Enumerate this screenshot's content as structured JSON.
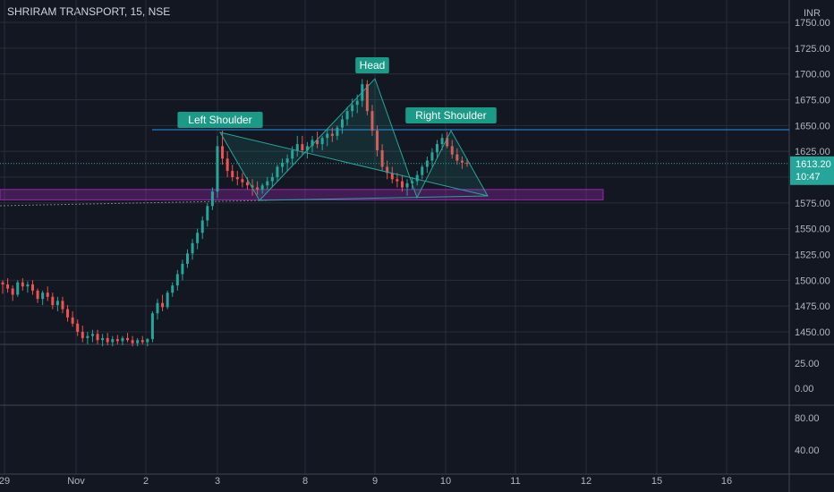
{
  "header": {
    "title": "SHRIRAM TRANSPORT, 15, NSE"
  },
  "chart_data": {
    "type": "candlestick",
    "currency": "INR",
    "price_axis": {
      "ylim": [
        1425,
        1765
      ],
      "ticks": [
        "1750.00",
        "1725.00",
        "1700.00",
        "1675.00",
        "1650.00",
        "1625.00",
        "1600.00",
        "1575.00",
        "1550.00",
        "1525.00",
        "1500.00",
        "1475.00",
        "1450.00"
      ]
    },
    "last_price": {
      "value": "1613.20",
      "countdown": "10:47"
    },
    "x_labels": [
      "29",
      "Nov",
      "2",
      "3",
      "8",
      "9",
      "10",
      "11",
      "12",
      "15",
      "16"
    ],
    "annotations": {
      "left_shoulder": "Left Shoulder",
      "head": "Head",
      "right_shoulder": "Right Shoulder"
    },
    "resistance_level": 1646,
    "support_zone": [
      1580,
      1586
    ],
    "pattern_points": [
      {
        "label": "start",
        "day": "3",
        "price": 1645
      },
      {
        "label": "trough1",
        "day": "3",
        "price": 1580
      },
      {
        "label": "head",
        "day": "9",
        "price": 1695
      },
      {
        "label": "trough2",
        "day": "9",
        "price": 1582
      },
      {
        "label": "right",
        "day": "10",
        "price": 1645
      },
      {
        "label": "end",
        "day": "10",
        "price": 1583
      }
    ],
    "indicator1": {
      "ticks": [
        "25.00",
        "0.00"
      ]
    },
    "indicator2": {
      "ticks": [
        "80.00",
        "40.00"
      ]
    },
    "candles": [
      [
        1498,
        1500,
        1487,
        1496
      ],
      [
        1496,
        1502,
        1488,
        1492
      ],
      [
        1492,
        1495,
        1480,
        1486
      ],
      [
        1486,
        1500,
        1484,
        1498
      ],
      [
        1498,
        1502,
        1490,
        1494
      ],
      [
        1494,
        1499,
        1488,
        1496
      ],
      [
        1496,
        1500,
        1486,
        1490
      ],
      [
        1490,
        1492,
        1478,
        1482
      ],
      [
        1482,
        1490,
        1476,
        1488
      ],
      [
        1488,
        1494,
        1480,
        1484
      ],
      [
        1484,
        1488,
        1472,
        1476
      ],
      [
        1476,
        1484,
        1470,
        1480
      ],
      [
        1480,
        1484,
        1468,
        1472
      ],
      [
        1472,
        1476,
        1460,
        1464
      ],
      [
        1464,
        1470,
        1455,
        1458
      ],
      [
        1458,
        1462,
        1446,
        1450
      ],
      [
        1450,
        1456,
        1440,
        1444
      ],
      [
        1444,
        1450,
        1438,
        1446
      ],
      [
        1446,
        1452,
        1440,
        1448
      ],
      [
        1448,
        1452,
        1438,
        1442
      ],
      [
        1442,
        1448,
        1436,
        1444
      ],
      [
        1444,
        1449,
        1437,
        1440
      ],
      [
        1440,
        1446,
        1436,
        1443
      ],
      [
        1443,
        1447,
        1438,
        1441
      ],
      [
        1441,
        1446,
        1437,
        1444
      ],
      [
        1444,
        1449,
        1440,
        1442
      ],
      [
        1442,
        1446,
        1436,
        1439
      ],
      [
        1439,
        1444,
        1436,
        1442
      ],
      [
        1442,
        1446,
        1438,
        1440
      ],
      [
        1440,
        1444,
        1436,
        1443
      ],
      [
        1443,
        1470,
        1440,
        1468
      ],
      [
        1468,
        1482,
        1462,
        1478
      ],
      [
        1478,
        1486,
        1470,
        1474
      ],
      [
        1474,
        1490,
        1472,
        1488
      ],
      [
        1488,
        1498,
        1484,
        1495
      ],
      [
        1495,
        1510,
        1490,
        1506
      ],
      [
        1506,
        1520,
        1500,
        1516
      ],
      [
        1516,
        1530,
        1512,
        1526
      ],
      [
        1526,
        1540,
        1520,
        1536
      ],
      [
        1536,
        1550,
        1530,
        1546
      ],
      [
        1546,
        1562,
        1540,
        1558
      ],
      [
        1558,
        1575,
        1552,
        1572
      ],
      [
        1572,
        1590,
        1568,
        1586
      ],
      [
        1586,
        1640,
        1580,
        1630
      ],
      [
        1630,
        1645,
        1612,
        1618
      ],
      [
        1618,
        1625,
        1600,
        1606
      ],
      [
        1606,
        1612,
        1596,
        1600
      ],
      [
        1600,
        1606,
        1592,
        1598
      ],
      [
        1598,
        1604,
        1590,
        1595
      ],
      [
        1595,
        1600,
        1588,
        1592
      ],
      [
        1592,
        1598,
        1582,
        1590
      ],
      [
        1590,
        1596,
        1583,
        1588
      ],
      [
        1588,
        1594,
        1584,
        1592
      ],
      [
        1592,
        1600,
        1588,
        1596
      ],
      [
        1596,
        1604,
        1590,
        1600
      ],
      [
        1600,
        1612,
        1596,
        1610
      ],
      [
        1610,
        1618,
        1604,
        1614
      ],
      [
        1614,
        1622,
        1606,
        1618
      ],
      [
        1618,
        1630,
        1612,
        1626
      ],
      [
        1626,
        1640,
        1620,
        1632
      ],
      [
        1632,
        1640,
        1622,
        1626
      ],
      [
        1626,
        1634,
        1618,
        1630
      ],
      [
        1630,
        1640,
        1624,
        1636
      ],
      [
        1636,
        1644,
        1628,
        1632
      ],
      [
        1632,
        1640,
        1626,
        1638
      ],
      [
        1638,
        1646,
        1630,
        1642
      ],
      [
        1642,
        1648,
        1634,
        1640
      ],
      [
        1640,
        1650,
        1636,
        1648
      ],
      [
        1648,
        1660,
        1642,
        1656
      ],
      [
        1656,
        1668,
        1650,
        1664
      ],
      [
        1664,
        1676,
        1658,
        1670
      ],
      [
        1670,
        1680,
        1662,
        1674
      ],
      [
        1674,
        1695,
        1668,
        1690
      ],
      [
        1690,
        1694,
        1660,
        1664
      ],
      [
        1664,
        1670,
        1640,
        1645
      ],
      [
        1645,
        1650,
        1620,
        1626
      ],
      [
        1626,
        1632,
        1606,
        1610
      ],
      [
        1610,
        1616,
        1598,
        1604
      ],
      [
        1604,
        1610,
        1594,
        1598
      ],
      [
        1598,
        1604,
        1590,
        1596
      ],
      [
        1596,
        1602,
        1586,
        1590
      ],
      [
        1590,
        1598,
        1582,
        1594
      ],
      [
        1594,
        1600,
        1588,
        1596
      ],
      [
        1596,
        1606,
        1592,
        1602
      ],
      [
        1602,
        1612,
        1598,
        1610
      ],
      [
        1610,
        1620,
        1604,
        1616
      ],
      [
        1616,
        1628,
        1610,
        1624
      ],
      [
        1624,
        1636,
        1618,
        1632
      ],
      [
        1632,
        1642,
        1626,
        1638
      ],
      [
        1638,
        1644,
        1628,
        1630
      ],
      [
        1630,
        1636,
        1618,
        1622
      ],
      [
        1622,
        1628,
        1612,
        1616
      ],
      [
        1616,
        1620,
        1608,
        1614
      ],
      [
        1614,
        1618,
        1610,
        1613
      ]
    ]
  },
  "colors": {
    "background": "#131722",
    "grid": "#2a2e39",
    "text": "#b2b5be",
    "up": "#26a69a",
    "down": "#ef5350",
    "label_bg": "#1a9a87",
    "resistance": "#2196f3",
    "zone": "#9c27b0",
    "pattern": "#26a69a"
  }
}
